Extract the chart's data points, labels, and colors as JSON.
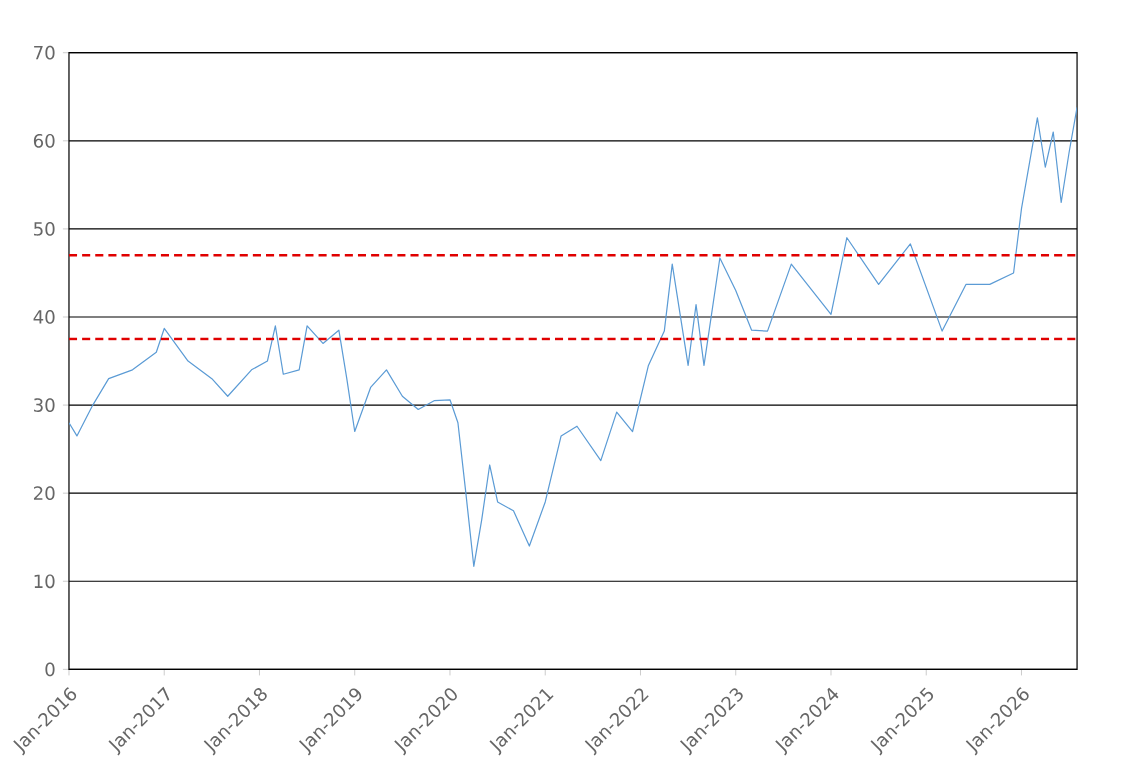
{
  "chart_data": {
    "type": "line",
    "grid": "y",
    "legend": false,
    "marker": "none",
    "line_style": "solid",
    "xlim": [
      "2016-01",
      "2026-08"
    ],
    "xticks": [
      {
        "value": "2016-01",
        "label": "Jan-2016"
      },
      {
        "value": "2017-01",
        "label": "Jan-2017"
      },
      {
        "value": "2018-01",
        "label": "Jan-2018"
      },
      {
        "value": "2019-01",
        "label": "Jan-2019"
      },
      {
        "value": "2020-01",
        "label": "Jan-2020"
      },
      {
        "value": "2021-01",
        "label": "Jan-2021"
      },
      {
        "value": "2022-01",
        "label": "Jan-2022"
      },
      {
        "value": "2023-01",
        "label": "Jan-2023"
      },
      {
        "value": "2024-01",
        "label": "Jan-2024"
      },
      {
        "value": "2025-01",
        "label": "Jan-2025"
      },
      {
        "value": "2026-01",
        "label": "Jan-2026"
      }
    ],
    "ylim": [
      0,
      70
    ],
    "yticks": [
      0,
      10,
      20,
      30,
      40,
      50,
      60,
      70
    ],
    "ref_lines": [
      {
        "axis": "y",
        "value": 47,
        "color": "#e00000",
        "line_style": "dashed"
      },
      {
        "axis": "y",
        "value": 37.5,
        "color": "#e00000",
        "line_style": "dashed"
      }
    ],
    "series": [
      {
        "color": "#5b9bd5",
        "x": [
          "2016-01",
          "2016-02",
          "2016-04",
          "2016-06",
          "2016-09",
          "2016-12",
          "2017-01",
          "2017-04",
          "2017-07",
          "2017-09",
          "2017-12",
          "2018-02",
          "2018-03",
          "2018-04",
          "2018-06",
          "2018-07",
          "2018-09",
          "2018-11",
          "2018-12",
          "2019-01",
          "2019-03",
          "2019-05",
          "2019-07",
          "2019-09",
          "2019-11",
          "2020-01",
          "2020-02",
          "2020-03",
          "2020-04",
          "2020-05",
          "2020-06",
          "2020-07",
          "2020-09",
          "2020-11",
          "2021-01",
          "2021-03",
          "2021-05",
          "2021-08",
          "2021-10",
          "2021-12",
          "2022-02",
          "2022-04",
          "2022-05",
          "2022-07",
          "2022-08",
          "2022-09",
          "2022-11",
          "2023-01",
          "2023-03",
          "2023-05",
          "2023-08",
          "2024-01",
          "2024-03",
          "2024-07",
          "2024-11",
          "2025-03",
          "2025-06",
          "2025-09",
          "2025-12",
          "2026-01",
          "2026-03",
          "2026-04",
          "2026-05",
          "2026-06",
          "2026-07",
          "2026-08"
        ],
        "values": [
          28,
          26.5,
          30,
          33,
          34,
          36,
          38.7,
          35,
          33,
          31,
          34,
          35,
          39,
          33.5,
          34,
          39,
          37,
          38.5,
          33,
          27,
          32,
          34,
          31,
          29.5,
          30.5,
          30.6,
          28,
          20,
          11.7,
          17,
          23.2,
          19,
          18,
          14,
          19,
          26.5,
          27.6,
          23.7,
          29.2,
          27,
          34.5,
          38.4,
          46,
          34.5,
          41.4,
          34.5,
          46.7,
          43,
          38.5,
          38.4,
          46,
          40.3,
          49,
          43.7,
          48.3,
          38.4,
          43.7,
          43.7,
          45,
          52.3,
          62.6,
          57,
          61,
          53,
          58.7,
          63.8
        ]
      }
    ]
  }
}
